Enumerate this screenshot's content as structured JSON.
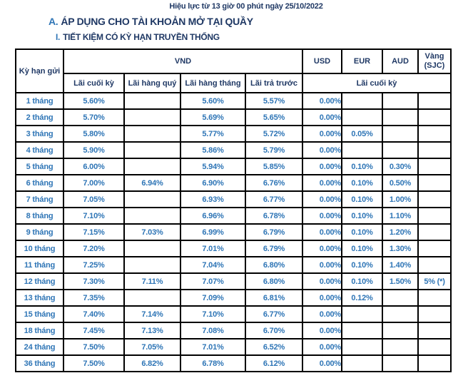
{
  "page": {
    "effective_note": "Hiệu lực từ 13 giờ 00 phút ngày 25/10/2022",
    "section_a_prefix": "A.",
    "section_a_title": "ÁP DỤNG CHO TÀI KHOẢN MỞ TẠI QUẦY",
    "section_i_prefix": "I.",
    "section_i_title": "TIẾT KIỆM CÓ KỲ HẠN TRUYỀN THỐNG"
  },
  "colors": {
    "heading_navy": "#1F3864",
    "accent_blue": "#2E75B6",
    "table_border": "#000000"
  },
  "table": {
    "header": {
      "term": "Kỳ hạn gửi",
      "vnd_group": "VND",
      "vnd_subheaders": [
        "Lãi cuối kỳ",
        "Lãi hàng quý",
        "Lãi hàng tháng",
        "Lãi trả trước"
      ],
      "usd": "USD",
      "eur": "EUR",
      "aud": "AUD",
      "gold_line1": "Vàng",
      "gold_line2": "(SJC)",
      "fx_subheader": "Lãi cuối kỳ"
    },
    "rows": [
      {
        "term": "1 tháng",
        "cells": [
          "5.60%",
          "",
          "5.60%",
          "5.57%",
          "0.00%",
          "",
          "",
          ""
        ]
      },
      {
        "term": "2 tháng",
        "cells": [
          "5.70%",
          "",
          "5.69%",
          "5.65%",
          "0.00%",
          "",
          "",
          ""
        ]
      },
      {
        "term": "3 tháng",
        "cells": [
          "5.80%",
          "",
          "5.77%",
          "5.72%",
          "0.00%",
          "0.05%",
          "",
          ""
        ]
      },
      {
        "term": "4 tháng",
        "cells": [
          "5.90%",
          "",
          "5.86%",
          "5.79%",
          "0.00%",
          "",
          "",
          ""
        ]
      },
      {
        "term": "5 tháng",
        "cells": [
          "6.00%",
          "",
          "5.94%",
          "5.85%",
          "0.00%",
          "0.10%",
          "0.30%",
          ""
        ]
      },
      {
        "term": "6 tháng",
        "cells": [
          "7.00%",
          "6.94%",
          "6.90%",
          "6.76%",
          "0.00%",
          "0.10%",
          "0.50%",
          ""
        ]
      },
      {
        "term": "7 tháng",
        "cells": [
          "7.05%",
          "",
          "6.93%",
          "6.77%",
          "0.00%",
          "0.10%",
          "1.00%",
          ""
        ]
      },
      {
        "term": "8 tháng",
        "cells": [
          "7.10%",
          "",
          "6.96%",
          "6.78%",
          "0.00%",
          "0.10%",
          "1.10%",
          ""
        ]
      },
      {
        "term": "9 tháng",
        "cells": [
          "7.15%",
          "7.03%",
          "6.99%",
          "6.79%",
          "0.00%",
          "0.10%",
          "1.20%",
          ""
        ]
      },
      {
        "term": "10 tháng",
        "cells": [
          "7.20%",
          "",
          "7.01%",
          "6.79%",
          "0.00%",
          "0.10%",
          "1.30%",
          ""
        ]
      },
      {
        "term": "11 tháng",
        "cells": [
          "7.25%",
          "",
          "7.04%",
          "6.80%",
          "0.00%",
          "0.10%",
          "1.40%",
          ""
        ]
      },
      {
        "term": "12 tháng",
        "cells": [
          "7.30%",
          "7.11%",
          "7.07%",
          "6.80%",
          "0.00%",
          "0.10%",
          "1.50%",
          "5% (*)"
        ]
      },
      {
        "term": "13 tháng",
        "cells": [
          "7.35%",
          "",
          "7.09%",
          "6.81%",
          "0.00%",
          "0.12%",
          "",
          ""
        ]
      },
      {
        "term": "15 tháng",
        "cells": [
          "7.40%",
          "7.14%",
          "7.10%",
          "6.77%",
          "0.00%",
          "",
          "",
          ""
        ]
      },
      {
        "term": "18 tháng",
        "cells": [
          "7.45%",
          "7.13%",
          "7.08%",
          "6.70%",
          "0.00%",
          "",
          "",
          ""
        ]
      },
      {
        "term": "24 tháng",
        "cells": [
          "7.50%",
          "7.05%",
          "7.01%",
          "6.52%",
          "0.00%",
          "",
          "",
          ""
        ]
      },
      {
        "term": "36 tháng",
        "cells": [
          "7.50%",
          "6.82%",
          "6.78%",
          "6.12%",
          "0.00%",
          "",
          "",
          ""
        ]
      }
    ]
  }
}
